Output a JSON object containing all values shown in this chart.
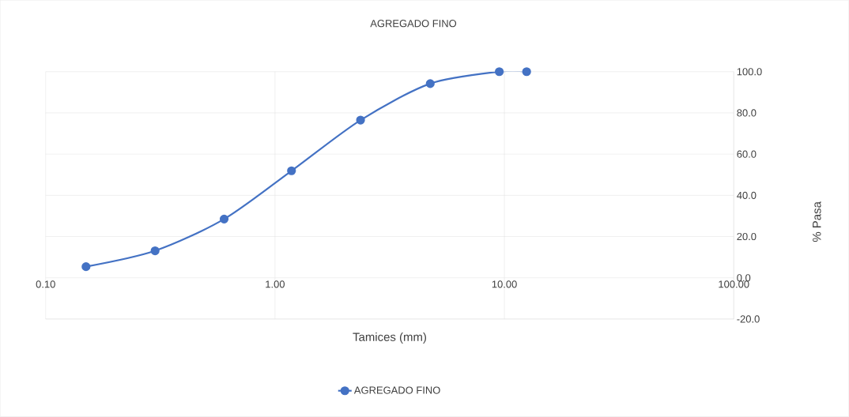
{
  "chart_data": {
    "type": "line",
    "title": "AGREGADO FINO",
    "xlabel": "Tamices (mm)",
    "ylabel": "% Pasa",
    "x": [
      0.15,
      0.3,
      0.6,
      1.18,
      2.36,
      4.75,
      9.5,
      12.5
    ],
    "series": [
      {
        "name": "AGREGADO FINO",
        "color": "#4472c4",
        "values": [
          5.4,
          13.1,
          28.5,
          51.9,
          76.5,
          94.2,
          100.0,
          100.0
        ]
      }
    ],
    "log": "x",
    "xlim": [
      0.1,
      100
    ],
    "ylim": [
      -20,
      100
    ],
    "xticks": [
      {
        "value": 0.1,
        "label": "0.10"
      },
      {
        "value": 1,
        "label": "1.00"
      },
      {
        "value": 10,
        "label": "10.00"
      },
      {
        "value": 100,
        "label": "100.00"
      }
    ],
    "yticks": [
      {
        "value": -20,
        "label": "-20.0"
      },
      {
        "value": 0,
        "label": "0.0"
      },
      {
        "value": 20,
        "label": "20.0"
      },
      {
        "value": 40,
        "label": "40.0"
      },
      {
        "value": 60,
        "label": "60.0"
      },
      {
        "value": 80,
        "label": "80.0"
      },
      {
        "value": 100,
        "label": "100.0"
      }
    ],
    "grid": true,
    "legend": "bottom",
    "marker": "circle",
    "line_style": "solid"
  }
}
